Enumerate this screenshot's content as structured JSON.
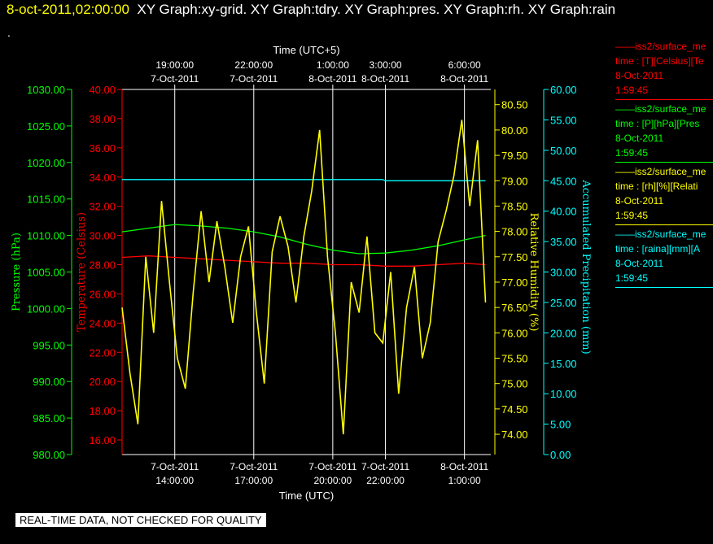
{
  "header": {
    "date": "8-oct-2011,02:00:00",
    "graphs": "XY Graph:xy-grid.  XY Graph:tdry.  XY Graph:pres.  XY Graph:rh.  XY Graph:rain",
    "dot": "."
  },
  "disclaimer": "REAL-TIME DATA, NOT CHECKED FOR QUALITY",
  "colors": {
    "temperature": "#ff0000",
    "pressure": "#00ff00",
    "humidity": "#ffff00",
    "precipitation": "#00ffff",
    "grid": "#ffffff"
  },
  "legend": [
    {
      "line1": "iss2/surface_me",
      "line2": "time : [T][Celsius][Te",
      "line3": "8-Oct-2011",
      "line4": "1:59:45",
      "color": "#ff0000"
    },
    {
      "line1": "iss2/surface_me",
      "line2": "time : [P][hPa][Pres",
      "line3": "8-Oct-2011",
      "line4": "1:59:45",
      "color": "#00ff00"
    },
    {
      "line1": "iss2/surface_me",
      "line2": "time : [rh][%][Relati",
      "line3": "8-Oct-2011",
      "line4": "1:59:45",
      "color": "#ffff00"
    },
    {
      "line1": "iss2/surface_me",
      "line2": "time : [raina][mm][A",
      "line3": "8-Oct-2011",
      "line4": "1:59:45",
      "color": "#00ffff"
    }
  ],
  "chart_data": {
    "type": "line",
    "x_label_bottom": "Time (UTC)",
    "x_label_top": "Time (UTC+5)",
    "x_ticks_bottom": [
      {
        "time": "7-Oct-2011 14:00",
        "line1": "7-Oct-2011",
        "line2": "14:00:00"
      },
      {
        "time": "7-Oct-2011 17:00",
        "line1": "7-Oct-2011",
        "line2": "17:00:00"
      },
      {
        "time": "7-Oct-2011 20:00",
        "line1": "7-Oct-2011",
        "line2": "20:00:00"
      },
      {
        "time": "7-Oct-2011 22:00",
        "line1": "7-Oct-2011",
        "line2": "22:00:00"
      },
      {
        "time": "8-Oct-2011 01:00",
        "line1": "8-Oct-2011",
        "line2": "1:00:00"
      }
    ],
    "x_ticks_top": [
      {
        "time": "7-Oct-2011 19:00",
        "line1": "19:00:00",
        "line2": "7-Oct-2011"
      },
      {
        "time": "7-Oct-2011 22:00",
        "line1": "22:00:00",
        "line2": "7-Oct-2011"
      },
      {
        "time": "8-Oct-2011 01:00",
        "line1": "1:00:00",
        "line2": "8-Oct-2011"
      },
      {
        "time": "8-Oct-2011 03:00",
        "line1": "3:00:00",
        "line2": "8-Oct-2011"
      },
      {
        "time": "8-Oct-2011 06:00",
        "line1": "6:00:00",
        "line2": "8-Oct-2011"
      }
    ],
    "x_range_utc": [
      "7-Oct-2011 12:00",
      "8-Oct-2011 02:00"
    ],
    "axes": {
      "pressure": {
        "label": "Pressure (hPa)",
        "ylim": [
          980,
          1030
        ],
        "ticks": [
          "980.00",
          "985.00",
          "990.00",
          "995.00",
          "1000.00",
          "1005.00",
          "1010.00",
          "1015.00",
          "1020.00",
          "1025.00",
          "1030.00"
        ]
      },
      "temperature": {
        "label": "Temperature (Celsius)",
        "ylim": [
          15,
          40
        ],
        "ticks": [
          "16.00",
          "18.00",
          "20.00",
          "22.00",
          "24.00",
          "26.00",
          "28.00",
          "30.00",
          "32.00",
          "34.00",
          "36.00",
          "38.00",
          "40.00"
        ]
      },
      "humidity": {
        "label": "Relative Humidity (%)",
        "ylim": [
          73.6,
          80.8
        ],
        "ticks": [
          "74.00",
          "74.50",
          "75.00",
          "75.50",
          "76.00",
          "76.50",
          "77.00",
          "77.50",
          "78.00",
          "78.50",
          "79.00",
          "79.50",
          "80.00",
          "80.50"
        ]
      },
      "precipitation": {
        "label": "Accumulated Precipitation (mm)",
        "ylim": [
          0,
          60
        ],
        "ticks": [
          "0.00",
          "5.00",
          "10.00",
          "15.00",
          "20.00",
          "25.00",
          "30.00",
          "35.00",
          "40.00",
          "45.00",
          "50.00",
          "55.00",
          "60.00"
        ]
      }
    },
    "grid": true,
    "series": [
      {
        "key": "temperature",
        "axis": "temperature",
        "x_hours_utc": [
          12.0,
          13.0,
          14.0,
          15.0,
          16.0,
          17.0,
          18.0,
          19.0,
          20.0,
          21.0,
          22.0,
          23.0,
          24.0,
          25.0,
          25.8
        ],
        "values": [
          28.5,
          28.6,
          28.5,
          28.4,
          28.3,
          28.2,
          28.1,
          28.1,
          28.0,
          28.0,
          27.9,
          27.9,
          28.0,
          28.1,
          28.0
        ]
      },
      {
        "key": "pressure",
        "axis": "pressure",
        "x_hours_utc": [
          12.0,
          13.0,
          14.0,
          15.0,
          16.0,
          17.0,
          18.0,
          19.0,
          20.0,
          21.0,
          22.0,
          23.0,
          24.0,
          25.0,
          25.8
        ],
        "values": [
          1010.5,
          1011.0,
          1011.5,
          1011.3,
          1011.0,
          1010.5,
          1009.8,
          1008.8,
          1008.0,
          1007.5,
          1007.6,
          1008.0,
          1008.6,
          1009.4,
          1010.0
        ]
      },
      {
        "key": "precipitation",
        "axis": "precipitation",
        "x_hours_utc": [
          12.0,
          14.0,
          16.0,
          18.0,
          20.0,
          21.9,
          22.0,
          23.0,
          24.0,
          25.0,
          25.8
        ],
        "values": [
          45.2,
          45.2,
          45.2,
          45.2,
          45.2,
          45.2,
          45.0,
          45.0,
          45.0,
          45.0,
          45.0
        ]
      },
      {
        "key": "humidity",
        "axis": "humidity",
        "x_hours_utc": [
          12.0,
          12.3,
          12.6,
          12.9,
          13.2,
          13.5,
          13.8,
          14.1,
          14.4,
          14.7,
          15.0,
          15.3,
          15.6,
          15.9,
          16.2,
          16.5,
          16.8,
          17.1,
          17.4,
          17.7,
          18.0,
          18.3,
          18.6,
          18.9,
          19.2,
          19.5,
          19.8,
          20.1,
          20.4,
          20.7,
          21.0,
          21.3,
          21.6,
          21.9,
          22.2,
          22.5,
          22.8,
          23.1,
          23.4,
          23.7,
          24.0,
          24.3,
          24.6,
          24.9,
          25.2,
          25.5,
          25.8
        ],
        "values": [
          76.5,
          75.2,
          74.2,
          77.5,
          76.0,
          78.6,
          77.0,
          75.5,
          74.9,
          76.8,
          78.4,
          77.0,
          78.2,
          77.3,
          76.2,
          77.5,
          78.1,
          76.4,
          75.0,
          77.6,
          78.3,
          77.7,
          76.6,
          77.9,
          78.8,
          80.0,
          77.5,
          76.0,
          74.0,
          77.0,
          76.4,
          77.9,
          76.0,
          75.8,
          77.2,
          74.8,
          76.5,
          77.3,
          75.5,
          76.2,
          77.8,
          78.4,
          79.1,
          80.2,
          78.5,
          79.8,
          76.6
        ]
      }
    ]
  }
}
